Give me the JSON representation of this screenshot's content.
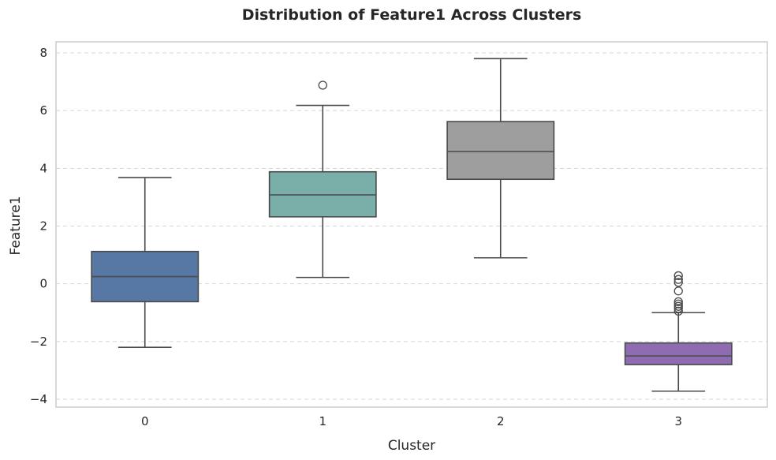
{
  "chart_data": {
    "type": "box",
    "title": "Distribution of Feature1 Across Clusters",
    "xlabel": "Cluster",
    "ylabel": "Feature1",
    "ylim": [
      -4.3,
      8.4
    ],
    "yticks": [
      -4,
      -2,
      0,
      2,
      4,
      6,
      8
    ],
    "ytick_labels": [
      "−4",
      "−2",
      "0",
      "2",
      "4",
      "6",
      "8"
    ],
    "grid": "y-dashed",
    "categories": [
      "0",
      "1",
      "2",
      "3"
    ],
    "boxes": [
      {
        "category": "0",
        "color": "#5778a4",
        "whisker_low": -2.2,
        "q1": -0.62,
        "median": 0.25,
        "q3": 1.12,
        "whisker_high": 3.68,
        "outliers": []
      },
      {
        "category": "1",
        "color": "#7aafa9",
        "whisker_low": 0.22,
        "q1": 2.32,
        "median": 3.08,
        "q3": 3.88,
        "whisker_high": 6.18,
        "outliers": [
          6.88
        ]
      },
      {
        "category": "2",
        "color": "#9e9e9e",
        "whisker_low": 0.9,
        "q1": 3.62,
        "median": 4.58,
        "q3": 5.62,
        "whisker_high": 7.8,
        "outliers": []
      },
      {
        "category": "3",
        "color": "#8f6bb1",
        "whisker_low": -3.72,
        "q1": -2.8,
        "median": -2.5,
        "q3": -2.05,
        "whisker_high": -1.0,
        "outliers": [
          -0.95,
          -0.85,
          -0.78,
          -0.7,
          -0.62,
          -0.25,
          0.05,
          0.15,
          0.28
        ]
      }
    ]
  }
}
